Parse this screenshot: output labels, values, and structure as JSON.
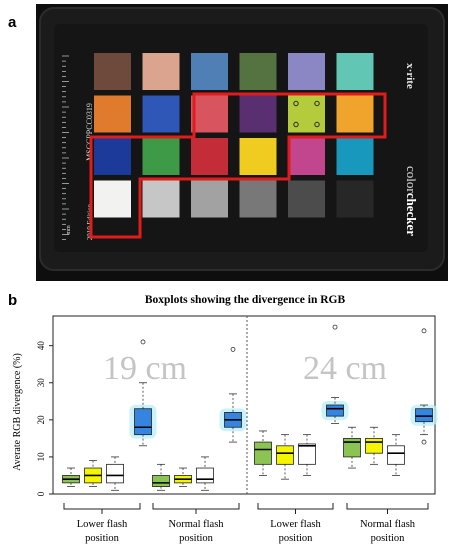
{
  "panel_a": {
    "label": "a",
    "card_text": {
      "left_vertical": "MSCCPPCC0319",
      "left_edition": "2019 Edition",
      "ruler_unit": "mm",
      "brand": "x·rite",
      "product_prefix": "color",
      "product_suffix": "checker"
    },
    "patch_colors": [
      [
        "#6e4a3c",
        "#dba48e",
        "#4f7fb4",
        "#557341",
        "#8b86c4",
        "#62c6b4"
      ],
      [
        "#e07a2c",
        "#2f57b8",
        "#d8545e",
        "#5a2f72",
        "#b4cc3c",
        "#f0a42c"
      ],
      [
        "#1b3a9a",
        "#3f9a48",
        "#c42c38",
        "#f0cc20",
        "#c2468e",
        "#1898bc"
      ],
      [
        "#f2f2f0",
        "#c6c6c6",
        "#a2a2a2",
        "#787878",
        "#4c4c4c",
        "#272727"
      ]
    ]
  },
  "panel_b": {
    "label": "b",
    "chart_data": {
      "type": "box",
      "title": "Boxplots showing the divergence in RGB",
      "ylabel": "Averate RGB divergence (%)",
      "xlabel": "",
      "ylim": [
        0,
        48
      ],
      "yticks": [
        0,
        10,
        20,
        30,
        40
      ],
      "grid": false,
      "panel_labels": [
        "19 cm",
        "24 cm"
      ],
      "group_labels": [
        [
          "Lower flash",
          "position"
        ],
        [
          "Normal flash",
          "position"
        ],
        [
          "Lower flash",
          "position"
        ],
        [
          "Normal flash",
          "position"
        ]
      ],
      "colors": {
        "green": "#8cc454",
        "yellow": "#f5f500",
        "white": "#ffffff",
        "blue": "#3484e0",
        "glow": "#bdf0f8",
        "divider": "#555555"
      },
      "boxes": [
        {
          "group": 0,
          "color": "green",
          "min": 2,
          "q1": 3,
          "median": 4,
          "q3": 5,
          "max": 7,
          "outliers": []
        },
        {
          "group": 0,
          "color": "yellow",
          "min": 2,
          "q1": 3,
          "median": 5,
          "q3": 7,
          "max": 9,
          "outliers": []
        },
        {
          "group": 0,
          "color": "white",
          "min": 1,
          "q1": 3,
          "median": 5,
          "q3": 8,
          "max": 10,
          "outliers": []
        },
        {
          "group": 0,
          "color": "blue",
          "min": 13,
          "q1": 16,
          "median": 18,
          "q3": 23,
          "max": 30,
          "outliers": [
            41
          ]
        },
        {
          "group": 1,
          "color": "green",
          "min": 1,
          "q1": 2,
          "median": 3,
          "q3": 5,
          "max": 8,
          "outliers": []
        },
        {
          "group": 1,
          "color": "yellow",
          "min": 2,
          "q1": 3,
          "median": 4,
          "q3": 5,
          "max": 7,
          "outliers": []
        },
        {
          "group": 1,
          "color": "white",
          "min": 1,
          "q1": 3,
          "median": 4,
          "q3": 7,
          "max": 10,
          "outliers": []
        },
        {
          "group": 1,
          "color": "blue",
          "min": 14,
          "q1": 18,
          "median": 20,
          "q3": 22,
          "max": 27,
          "outliers": [
            39
          ]
        },
        {
          "group": 2,
          "color": "green",
          "min": 5,
          "q1": 8,
          "median": 12,
          "q3": 14,
          "max": 17,
          "outliers": []
        },
        {
          "group": 2,
          "color": "yellow",
          "min": 4,
          "q1": 8,
          "median": 11,
          "q3": 13,
          "max": 16,
          "outliers": []
        },
        {
          "group": 2,
          "color": "white",
          "min": 5,
          "q1": 8,
          "median": 13,
          "q3": 13.5,
          "max": 16,
          "outliers": []
        },
        {
          "group": 2,
          "color": "blue",
          "min": 19,
          "q1": 21,
          "median": 23,
          "q3": 24,
          "max": 26,
          "outliers": [
            45
          ]
        },
        {
          "group": 3,
          "color": "green",
          "min": 7,
          "q1": 10,
          "median": 14,
          "q3": 15,
          "max": 18,
          "outliers": []
        },
        {
          "group": 3,
          "color": "yellow",
          "min": 8,
          "q1": 11,
          "median": 14,
          "q3": 15,
          "max": 18,
          "outliers": []
        },
        {
          "group": 3,
          "color": "white",
          "min": 5,
          "q1": 8,
          "median": 11,
          "q3": 13,
          "max": 16,
          "outliers": []
        },
        {
          "group": 3,
          "color": "blue",
          "min": 16,
          "q1": 19.5,
          "median": 21,
          "q3": 23,
          "max": 24,
          "outliers": [
            44,
            14
          ]
        }
      ]
    }
  }
}
